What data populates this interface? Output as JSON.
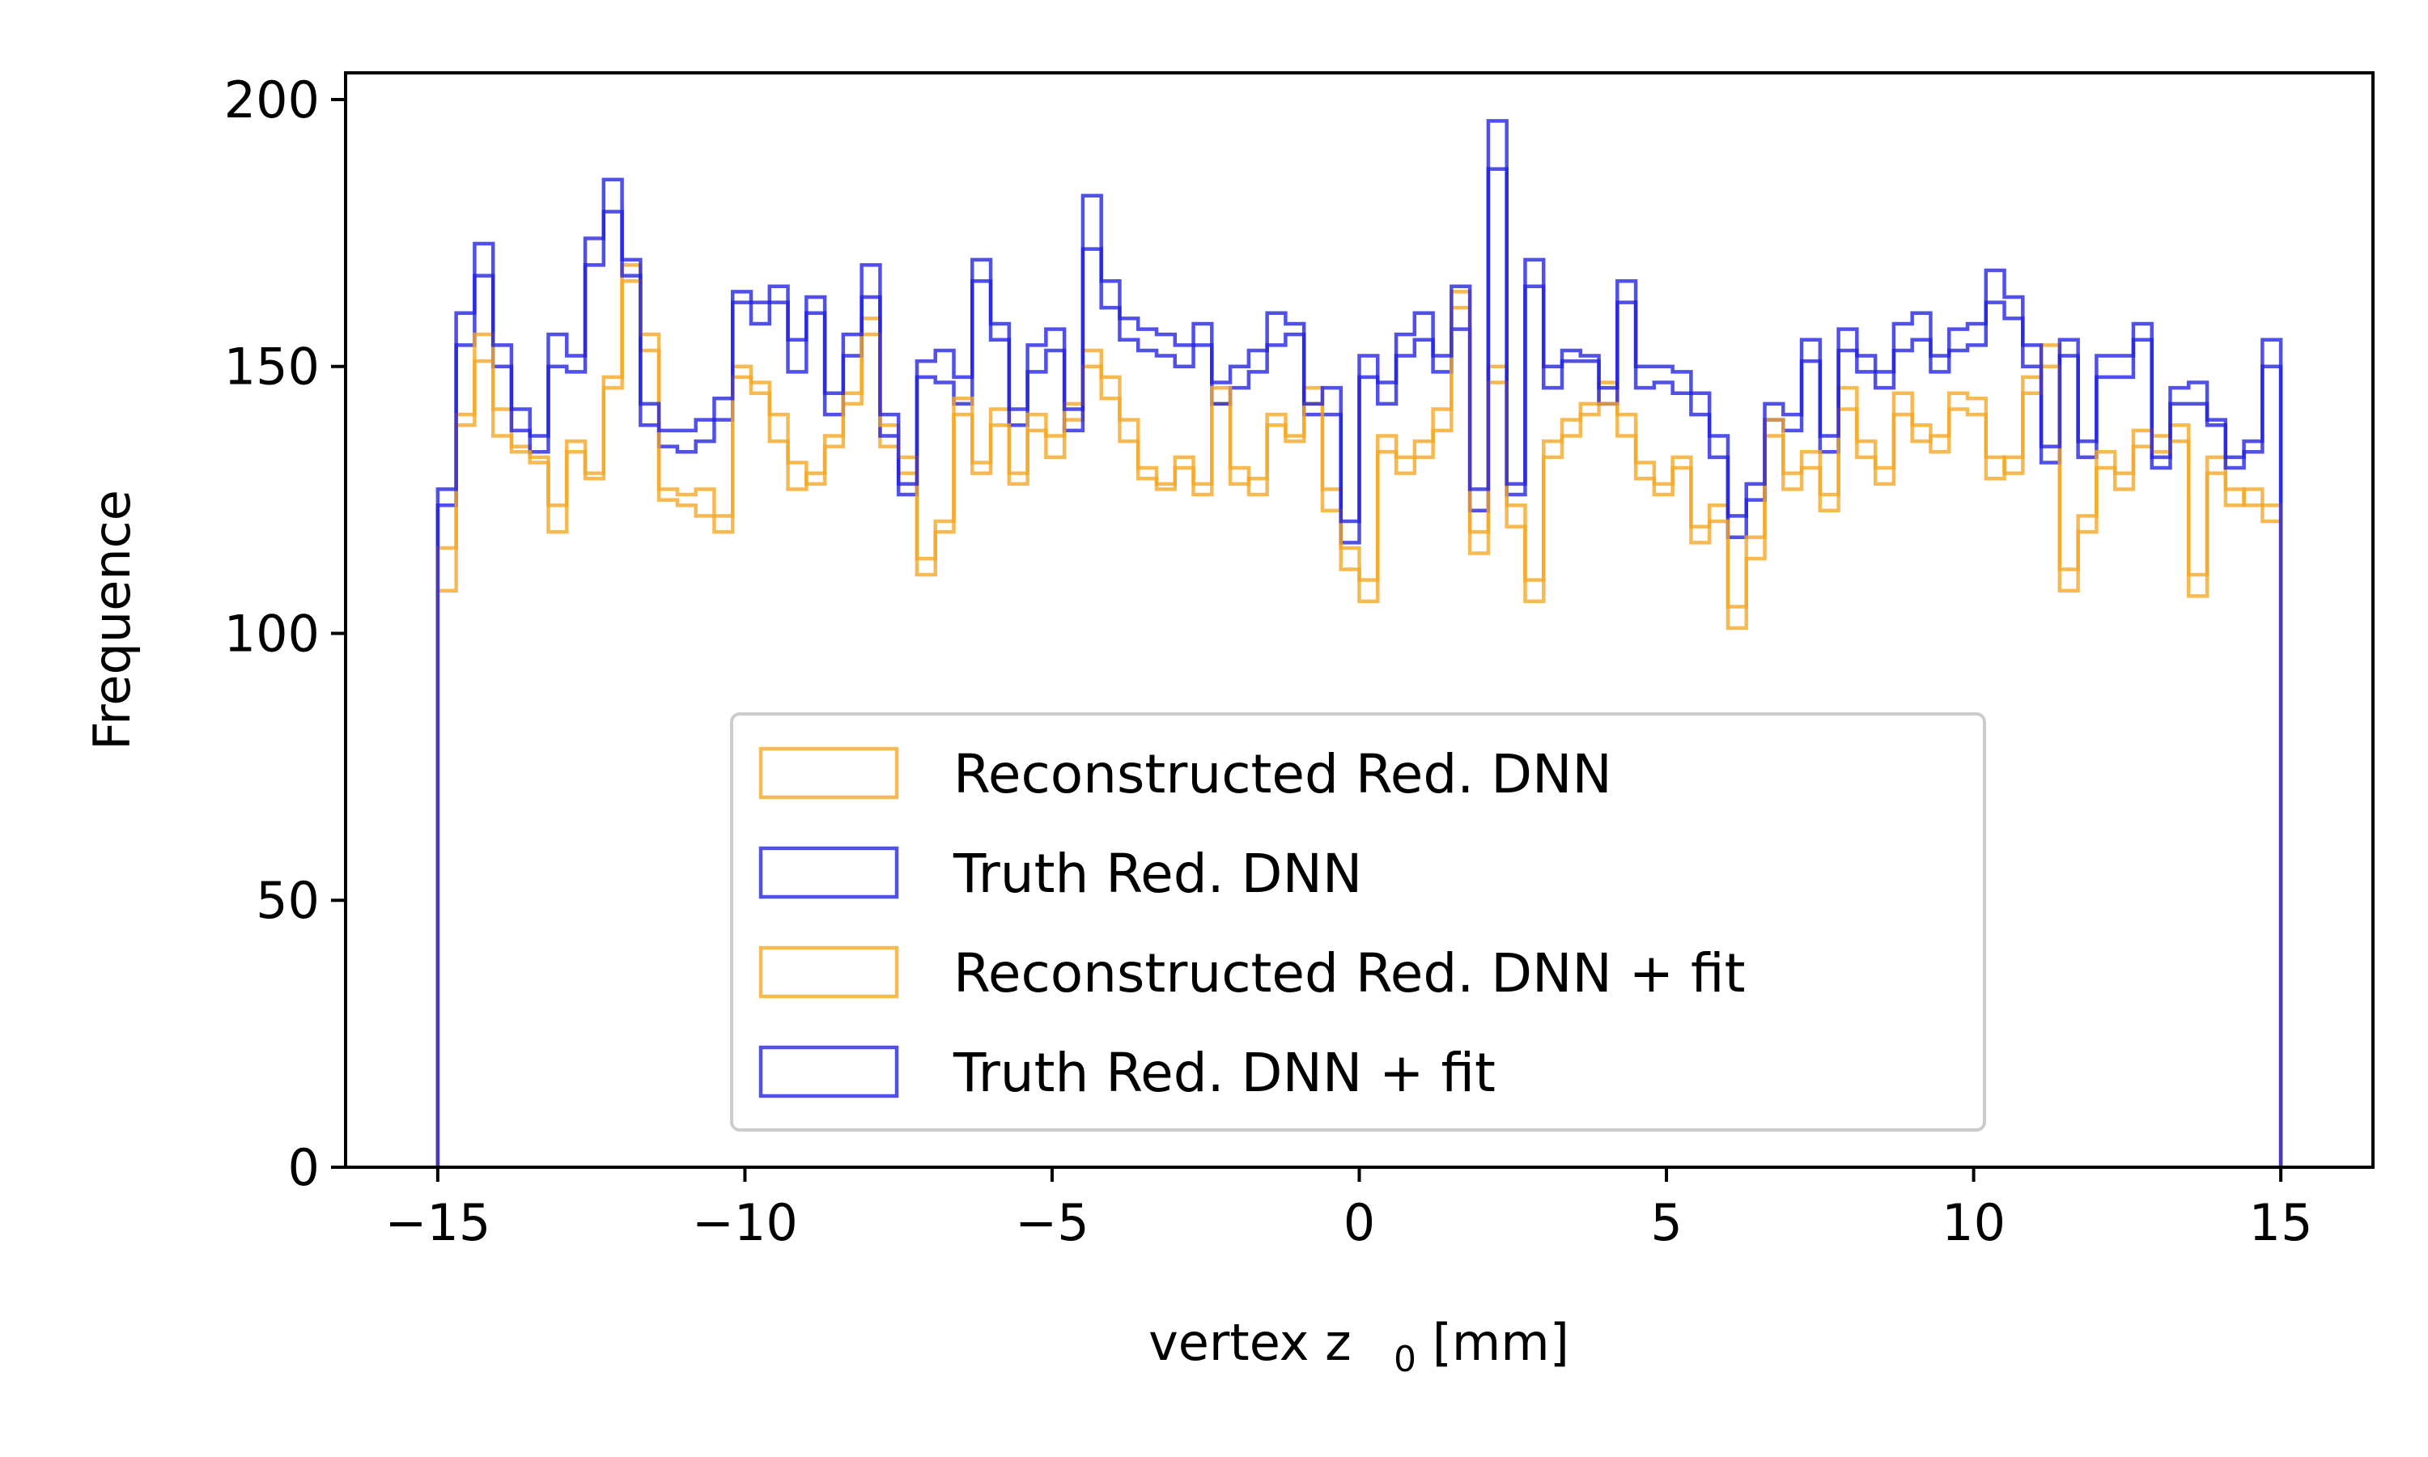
{
  "chart_data": {
    "type": "histogram",
    "xlabel": "vertex z",
    "xlabel_subscript": "0",
    "xlabel_unit": "[mm]",
    "ylabel": "Frequence",
    "xlim": [
      -16.5,
      16.5
    ],
    "ylim": [
      0,
      205
    ],
    "x_ticks": [
      -15,
      -10,
      -5,
      0,
      5,
      10,
      15
    ],
    "x_tick_labels": [
      "−15",
      "−10",
      "−5",
      "0",
      "5",
      "10",
      "15"
    ],
    "y_ticks": [
      0,
      50,
      100,
      150,
      200
    ],
    "y_tick_labels": [
      "0",
      "50",
      "100",
      "150",
      "200"
    ],
    "grid": false,
    "legend_position": "lower-center",
    "bins": {
      "start": -15,
      "end": 15,
      "count": 100
    },
    "series": [
      {
        "name": "Reconstructed Red. DNN",
        "color": "#f5a623",
        "values": [
          108,
          139,
          151,
          142,
          135,
          132,
          119,
          136,
          129,
          148,
          169,
          153,
          125,
          124,
          122,
          119,
          150,
          147,
          141,
          127,
          130,
          135,
          143,
          159,
          135,
          130,
          111,
          119,
          141,
          130,
          142,
          128,
          138,
          137,
          140,
          153,
          144,
          136,
          129,
          127,
          133,
          128,
          143,
          131,
          126,
          139,
          136,
          146,
          127,
          112,
          106,
          134,
          130,
          136,
          138,
          164,
          115,
          150,
          124,
          106,
          136,
          140,
          141,
          147,
          137,
          132,
          126,
          131,
          117,
          124,
          101,
          114,
          137,
          127,
          131,
          123,
          146,
          136,
          128,
          145,
          139,
          134,
          145,
          144,
          129,
          133,
          148,
          154,
          108,
          119,
          131,
          127,
          135,
          137,
          139,
          107,
          133,
          127,
          124,
          121
        ]
      },
      {
        "name": "Truth Red. DNN",
        "color": "#2020e0",
        "values": [
          124,
          154,
          167,
          150,
          138,
          134,
          150,
          149,
          169,
          179,
          167,
          139,
          135,
          134,
          136,
          140,
          162,
          158,
          162,
          149,
          160,
          141,
          152,
          163,
          137,
          126,
          148,
          147,
          143,
          166,
          155,
          139,
          149,
          153,
          138,
          172,
          161,
          155,
          153,
          152,
          150,
          154,
          143,
          146,
          149,
          154,
          156,
          141,
          141,
          117,
          148,
          143,
          152,
          155,
          149,
          157,
          123,
          187,
          126,
          165,
          146,
          151,
          151,
          143,
          162,
          146,
          147,
          145,
          141,
          133,
          118,
          125,
          140,
          138,
          151,
          134,
          153,
          149,
          146,
          153,
          155,
          149,
          153,
          154,
          162,
          159,
          150,
          132,
          152,
          133,
          148,
          148,
          155,
          131,
          143,
          143,
          140,
          131,
          134,
          150
        ]
      },
      {
        "name": "Reconstructed Red. DNN + fit",
        "color": "#f5a623",
        "values": [
          116,
          141,
          156,
          137,
          134,
          133,
          124,
          134,
          130,
          146,
          166,
          156,
          127,
          126,
          127,
          122,
          148,
          145,
          136,
          132,
          128,
          137,
          145,
          156,
          139,
          133,
          114,
          121,
          144,
          132,
          139,
          130,
          141,
          133,
          143,
          150,
          148,
          140,
          131,
          128,
          131,
          126,
          146,
          128,
          129,
          141,
          137,
          143,
          123,
          116,
          110,
          137,
          133,
          133,
          142,
          161,
          119,
          147,
          120,
          110,
          133,
          137,
          143,
          143,
          141,
          129,
          128,
          133,
          120,
          121,
          105,
          118,
          140,
          130,
          134,
          126,
          142,
          133,
          131,
          141,
          136,
          137,
          142,
          141,
          133,
          130,
          145,
          150,
          112,
          122,
          134,
          130,
          138,
          134,
          136,
          111,
          130,
          124,
          127,
          124
        ]
      },
      {
        "name": "Truth Red. DNN + fit",
        "color": "#2020e0",
        "values": [
          127,
          160,
          173,
          154,
          142,
          137,
          156,
          152,
          174,
          185,
          170,
          143,
          138,
          138,
          140,
          144,
          164,
          162,
          165,
          155,
          163,
          145,
          156,
          169,
          141,
          128,
          151,
          153,
          148,
          170,
          158,
          142,
          154,
          157,
          142,
          182,
          166,
          159,
          157,
          156,
          154,
          158,
          147,
          150,
          153,
          160,
          158,
          143,
          146,
          121,
          152,
          147,
          156,
          160,
          152,
          165,
          127,
          196,
          128,
          170,
          150,
          153,
          152,
          146,
          166,
          150,
          150,
          149,
          145,
          137,
          122,
          128,
          143,
          141,
          155,
          137,
          157,
          152,
          149,
          158,
          160,
          152,
          157,
          158,
          168,
          163,
          154,
          135,
          155,
          136,
          152,
          152,
          158,
          133,
          146,
          147,
          139,
          133,
          136,
          155
        ]
      }
    ]
  }
}
